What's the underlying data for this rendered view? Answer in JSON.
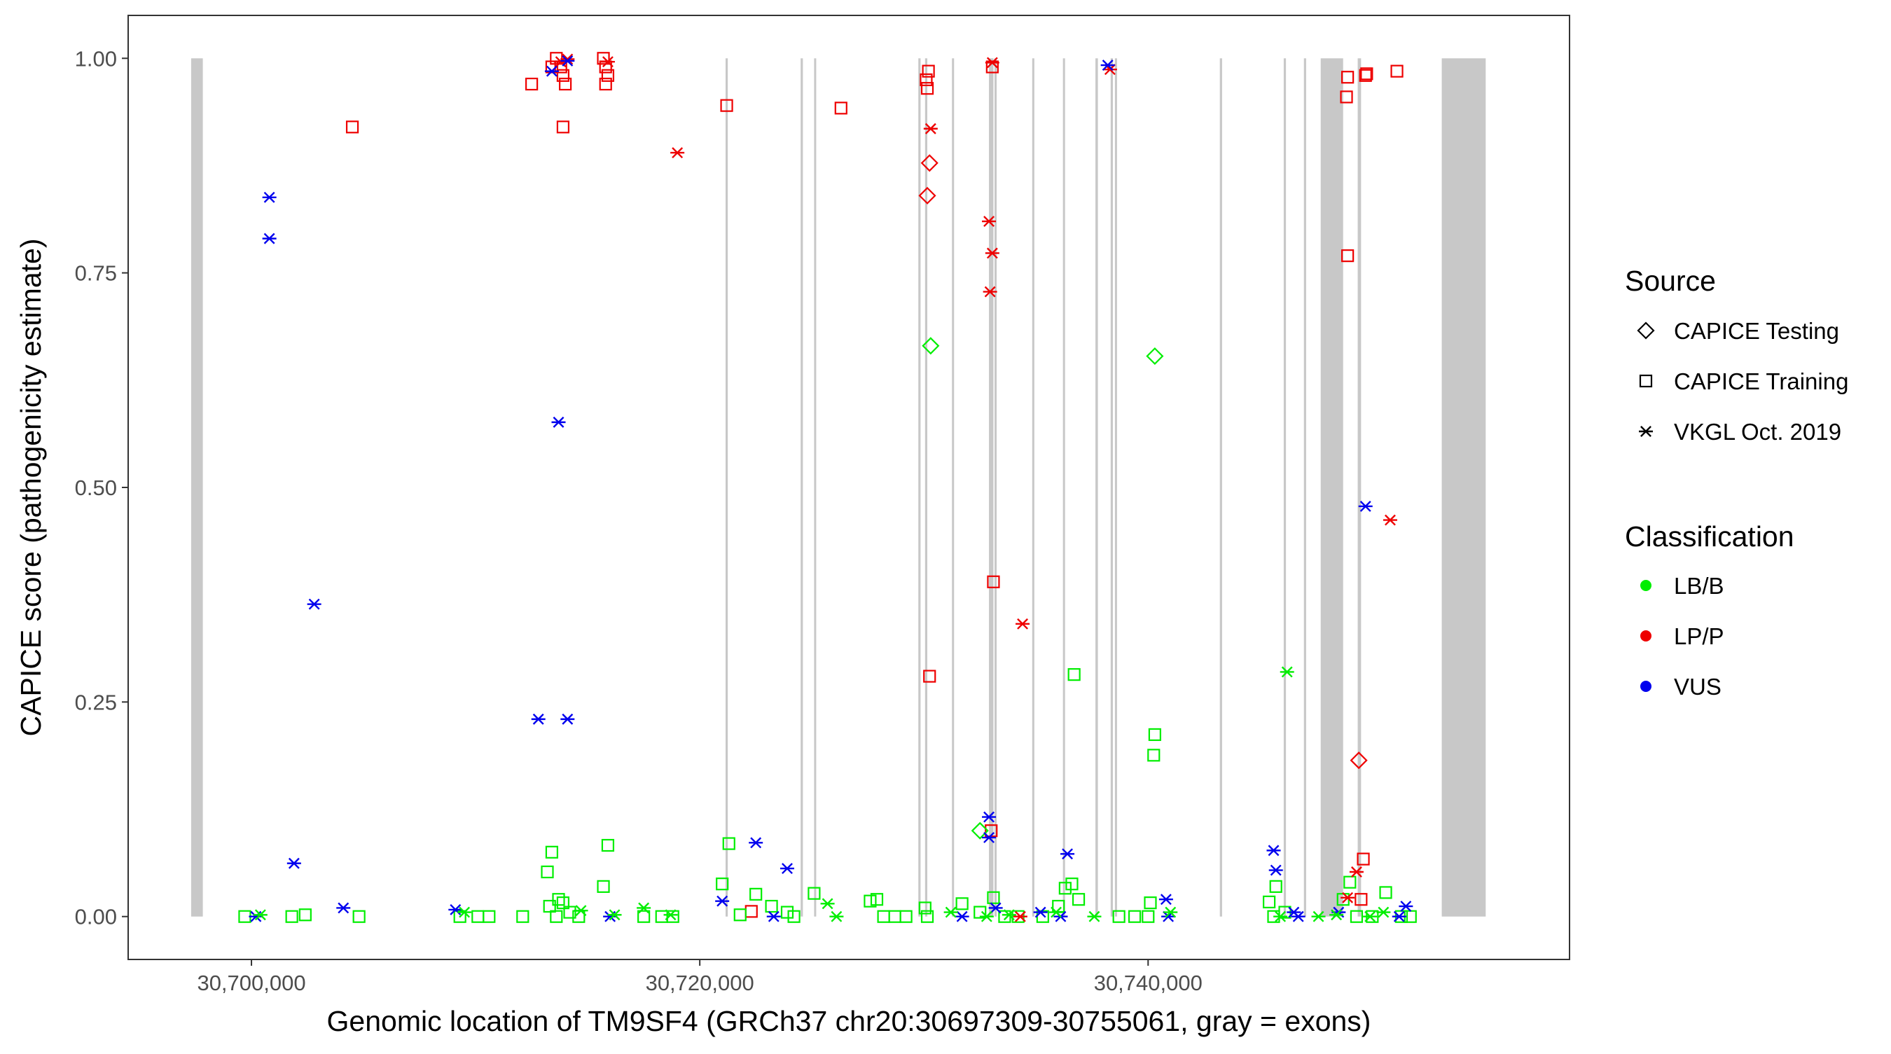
{
  "chart_data": {
    "type": "scatter",
    "title": "",
    "xlabel": "Genomic location of TM9SF4 (GRCh37 chr20:30697309-30755061, gray = exons)",
    "ylabel": "CAPICE score (pathogenicity estimate)",
    "xlim": [
      30694500,
      30758800
    ],
    "ylim": [
      -0.05,
      1.05
    ],
    "x_ticks": [
      30700000,
      30720000,
      30740000
    ],
    "x_tick_labels": [
      "30,700,000",
      "30,720,000",
      "30,740,000"
    ],
    "y_ticks": [
      0,
      0.25,
      0.5,
      0.75,
      1
    ],
    "y_tick_labels": [
      "0.00",
      "0.25",
      "0.50",
      "0.75",
      "1.00"
    ],
    "grid": false,
    "legend_position": "right",
    "exons": [
      [
        30697309,
        30697830
      ],
      [
        30721150,
        30721250
      ],
      [
        30724500,
        30724600
      ],
      [
        30725100,
        30725180
      ],
      [
        30729750,
        30729850
      ],
      [
        30730050,
        30730150
      ],
      [
        30731250,
        30731330
      ],
      [
        30732900,
        30733100
      ],
      [
        30733150,
        30733230
      ],
      [
        30734830,
        30734910
      ],
      [
        30736200,
        30736280
      ],
      [
        30737650,
        30737760
      ],
      [
        30738330,
        30738430
      ],
      [
        30738520,
        30738600
      ],
      [
        30743200,
        30743300
      ],
      [
        30746050,
        30746150
      ],
      [
        30746950,
        30747050
      ],
      [
        30747700,
        30748700
      ],
      [
        30749350,
        30749500
      ],
      [
        30753100,
        30755061
      ]
    ],
    "legend": {
      "source": {
        "title": "Source",
        "items": [
          {
            "label": "CAPICE Testing",
            "shape": "diamond"
          },
          {
            "label": "CAPICE Training",
            "shape": "square"
          },
          {
            "label": "VKGL Oct. 2019",
            "shape": "asterisk"
          }
        ]
      },
      "classification": {
        "title": "Classification",
        "items": [
          {
            "label": "LB/B",
            "color": "#00ee00"
          },
          {
            "label": "LP/P",
            "color": "#ee0000"
          },
          {
            "label": "VUS",
            "color": "#0000ee"
          }
        ]
      }
    },
    "colors": {
      "LB/B": "#00ee00",
      "LP/P": "#ee0000",
      "VUS": "#0000ee"
    },
    "series": [
      {
        "name": "CAPICE Training",
        "shape": "square",
        "points": [
          [
            30704500,
            0.92,
            "LP/P"
          ],
          [
            30712500,
            0.97,
            "LP/P"
          ],
          [
            30713400,
            0.99,
            "LP/P"
          ],
          [
            30713600,
            1.0,
            "LP/P"
          ],
          [
            30713800,
            0.99,
            "LP/P"
          ],
          [
            30713900,
            0.98,
            "LP/P"
          ],
          [
            30714000,
            0.97,
            "LP/P"
          ],
          [
            30713900,
            0.92,
            "LP/P"
          ],
          [
            30715700,
            1.0,
            "LP/P"
          ],
          [
            30715800,
            0.99,
            "LP/P"
          ],
          [
            30715900,
            0.98,
            "LP/P"
          ],
          [
            30715800,
            0.97,
            "LP/P"
          ],
          [
            30721200,
            0.945,
            "LP/P"
          ],
          [
            30726300,
            0.942,
            "LP/P"
          ],
          [
            30730200,
            0.985,
            "LP/P"
          ],
          [
            30730100,
            0.975,
            "LP/P"
          ],
          [
            30730150,
            0.965,
            "LP/P"
          ],
          [
            30730250,
            0.28,
            "LP/P"
          ],
          [
            30733050,
            0.99,
            "LP/P"
          ],
          [
            30733100,
            0.39,
            "LP/P"
          ],
          [
            30733000,
            0.1,
            "LP/P"
          ],
          [
            30748900,
            0.978,
            "LP/P"
          ],
          [
            30748850,
            0.955,
            "LP/P"
          ],
          [
            30749700,
            0.98,
            "LP/P"
          ],
          [
            30749750,
            0.982,
            "LP/P"
          ],
          [
            30751100,
            0.985,
            "LP/P"
          ],
          [
            30748900,
            0.77,
            "LP/P"
          ],
          [
            30749600,
            0.067,
            "LP/P"
          ],
          [
            30749500,
            0.02,
            "LP/P"
          ],
          [
            30722300,
            0.006,
            "LP/P"
          ],
          [
            30699700,
            0.0,
            "LB/B"
          ],
          [
            30701800,
            0.0,
            "LB/B"
          ],
          [
            30702400,
            0.002,
            "LB/B"
          ],
          [
            30704800,
            0.0,
            "LB/B"
          ],
          [
            30709300,
            0.0,
            "LB/B"
          ],
          [
            30710100,
            0.0,
            "LB/B"
          ],
          [
            30710600,
            0.0,
            "LB/B"
          ],
          [
            30712100,
            0.0,
            "LB/B"
          ],
          [
            30713200,
            0.052,
            "LB/B"
          ],
          [
            30713400,
            0.075,
            "LB/B"
          ],
          [
            30713300,
            0.012,
            "LB/B"
          ],
          [
            30713700,
            0.02,
            "LB/B"
          ],
          [
            30713900,
            0.016,
            "LB/B"
          ],
          [
            30714200,
            0.005,
            "LB/B"
          ],
          [
            30715700,
            0.035,
            "LB/B"
          ],
          [
            30715900,
            0.083,
            "LB/B"
          ],
          [
            30713600,
            0.0,
            "LB/B"
          ],
          [
            30714600,
            0.0,
            "LB/B"
          ],
          [
            30717500,
            0.0,
            "LB/B"
          ],
          [
            30718300,
            0.0,
            "LB/B"
          ],
          [
            30718800,
            0.0,
            "LB/B"
          ],
          [
            30721000,
            0.038,
            "LB/B"
          ],
          [
            30721300,
            0.085,
            "LB/B"
          ],
          [
            30722500,
            0.026,
            "LB/B"
          ],
          [
            30721800,
            0.002,
            "LB/B"
          ],
          [
            30723200,
            0.012,
            "LB/B"
          ],
          [
            30723900,
            0.005,
            "LB/B"
          ],
          [
            30724200,
            0.0,
            "LB/B"
          ],
          [
            30725100,
            0.027,
            "LB/B"
          ],
          [
            30727600,
            0.018,
            "LB/B"
          ],
          [
            30727900,
            0.02,
            "LB/B"
          ],
          [
            30728200,
            0.0,
            "LB/B"
          ],
          [
            30728700,
            0.0,
            "LB/B"
          ],
          [
            30729200,
            0.0,
            "LB/B"
          ],
          [
            30730050,
            0.01,
            "LB/B"
          ],
          [
            30730150,
            0.0,
            "LB/B"
          ],
          [
            30731700,
            0.015,
            "LB/B"
          ],
          [
            30732500,
            0.005,
            "LB/B"
          ],
          [
            30733100,
            0.022,
            "LB/B"
          ],
          [
            30733600,
            0.0,
            "LB/B"
          ],
          [
            30734200,
            0.0,
            "LB/B"
          ],
          [
            30735300,
            0.0,
            "LB/B"
          ],
          [
            30736000,
            0.012,
            "LB/B"
          ],
          [
            30736300,
            0.033,
            "LB/B"
          ],
          [
            30736600,
            0.038,
            "LB/B"
          ],
          [
            30736700,
            0.282,
            "LB/B"
          ],
          [
            30736900,
            0.02,
            "LB/B"
          ],
          [
            30738700,
            0.0,
            "LB/B"
          ],
          [
            30739400,
            0.0,
            "LB/B"
          ],
          [
            30740100,
            0.016,
            "LB/B"
          ],
          [
            30740300,
            0.212,
            "LB/B"
          ],
          [
            30740250,
            0.188,
            "LB/B"
          ],
          [
            30740000,
            0.0,
            "LB/B"
          ],
          [
            30745400,
            0.017,
            "LB/B"
          ],
          [
            30745700,
            0.035,
            "LB/B"
          ],
          [
            30745600,
            0.0,
            "LB/B"
          ],
          [
            30746100,
            0.005,
            "LB/B"
          ],
          [
            30749000,
            0.04,
            "LB/B"
          ],
          [
            30748700,
            0.02,
            "LB/B"
          ],
          [
            30749300,
            0.0,
            "LB/B"
          ],
          [
            30750000,
            0.0,
            "LB/B"
          ],
          [
            30750600,
            0.028,
            "LB/B"
          ],
          [
            30751300,
            0.0,
            "LB/B"
          ],
          [
            30751700,
            0.0,
            "LB/B"
          ]
        ]
      },
      {
        "name": "CAPICE Testing",
        "shape": "diamond",
        "points": [
          [
            30730250,
            0.878,
            "LP/P"
          ],
          [
            30730150,
            0.84,
            "LP/P"
          ],
          [
            30730300,
            0.665,
            "LB/B"
          ],
          [
            30732500,
            0.1,
            "LB/B"
          ],
          [
            30740300,
            0.653,
            "LB/B"
          ],
          [
            30749400,
            0.182,
            "LP/P"
          ]
        ]
      },
      {
        "name": "VKGL Oct. 2019",
        "shape": "asterisk",
        "points": [
          [
            30714100,
            0.999,
            "LP/P"
          ],
          [
            30713800,
            0.996,
            "LP/P"
          ],
          [
            30715900,
            0.996,
            "LP/P"
          ],
          [
            30719000,
            0.89,
            "LP/P"
          ],
          [
            30730300,
            0.918,
            "LP/P"
          ],
          [
            30733050,
            0.995,
            "LP/P"
          ],
          [
            30732900,
            0.81,
            "LP/P"
          ],
          [
            30733050,
            0.773,
            "LP/P"
          ],
          [
            30732950,
            0.728,
            "LP/P"
          ],
          [
            30734400,
            0.341,
            "LP/P"
          ],
          [
            30738300,
            0.987,
            "LP/P"
          ],
          [
            30750800,
            0.462,
            "LP/P"
          ],
          [
            30749300,
            0.052,
            "LP/P"
          ],
          [
            30748900,
            0.022,
            "LP/P"
          ],
          [
            30734300,
            0.0,
            "LP/P"
          ],
          [
            30700800,
            0.838,
            "VUS"
          ],
          [
            30700800,
            0.79,
            "VUS"
          ],
          [
            30713700,
            0.576,
            "VUS"
          ],
          [
            30702800,
            0.364,
            "VUS"
          ],
          [
            30712800,
            0.23,
            "VUS"
          ],
          [
            30714100,
            0.23,
            "VUS"
          ],
          [
            30701900,
            0.062,
            "VUS"
          ],
          [
            30700200,
            0.0,
            "VUS"
          ],
          [
            30704100,
            0.01,
            "VUS"
          ],
          [
            30709100,
            0.008,
            "VUS"
          ],
          [
            30713400,
            0.985,
            "VUS"
          ],
          [
            30714100,
            0.997,
            "VUS"
          ],
          [
            30716000,
            0.0,
            "VUS"
          ],
          [
            30721000,
            0.018,
            "VUS"
          ],
          [
            30722500,
            0.086,
            "VUS"
          ],
          [
            30723900,
            0.056,
            "VUS"
          ],
          [
            30723300,
            0.0,
            "VUS"
          ],
          [
            30731700,
            0.0,
            "VUS"
          ],
          [
            30732900,
            0.116,
            "VUS"
          ],
          [
            30732900,
            0.092,
            "VUS"
          ],
          [
            30733200,
            0.01,
            "VUS"
          ],
          [
            30735200,
            0.005,
            "VUS"
          ],
          [
            30736100,
            0.0,
            "VUS"
          ],
          [
            30736400,
            0.073,
            "VUS"
          ],
          [
            30738200,
            0.992,
            "VUS"
          ],
          [
            30740800,
            0.02,
            "VUS"
          ],
          [
            30740900,
            0.0,
            "VUS"
          ],
          [
            30745600,
            0.077,
            "VUS"
          ],
          [
            30745700,
            0.054,
            "VUS"
          ],
          [
            30746500,
            0.005,
            "VUS"
          ],
          [
            30746700,
            0.0,
            "VUS"
          ],
          [
            30748500,
            0.005,
            "VUS"
          ],
          [
            30749700,
            0.478,
            "VUS"
          ],
          [
            30751200,
            0.0,
            "VUS"
          ],
          [
            30751500,
            0.012,
            "VUS"
          ],
          [
            30700400,
            0.002,
            "LB/B"
          ],
          [
            30709500,
            0.005,
            "LB/B"
          ],
          [
            30714700,
            0.007,
            "LB/B"
          ],
          [
            30716200,
            0.002,
            "LB/B"
          ],
          [
            30717500,
            0.01,
            "LB/B"
          ],
          [
            30718700,
            0.002,
            "LB/B"
          ],
          [
            30725700,
            0.015,
            "LB/B"
          ],
          [
            30726100,
            0.0,
            "LB/B"
          ],
          [
            30731200,
            0.005,
            "LB/B"
          ],
          [
            30732800,
            0.0,
            "LB/B"
          ],
          [
            30733800,
            0.002,
            "LB/B"
          ],
          [
            30735900,
            0.005,
            "LB/B"
          ],
          [
            30737600,
            0.0,
            "LB/B"
          ],
          [
            30741000,
            0.005,
            "LB/B"
          ],
          [
            30745900,
            0.0,
            "LB/B"
          ],
          [
            30746200,
            0.285,
            "LB/B"
          ],
          [
            30747600,
            0.0,
            "LB/B"
          ],
          [
            30748400,
            0.002,
            "LB/B"
          ],
          [
            30749900,
            0.0,
            "LB/B"
          ],
          [
            30750500,
            0.005,
            "LB/B"
          ]
        ]
      }
    ]
  }
}
